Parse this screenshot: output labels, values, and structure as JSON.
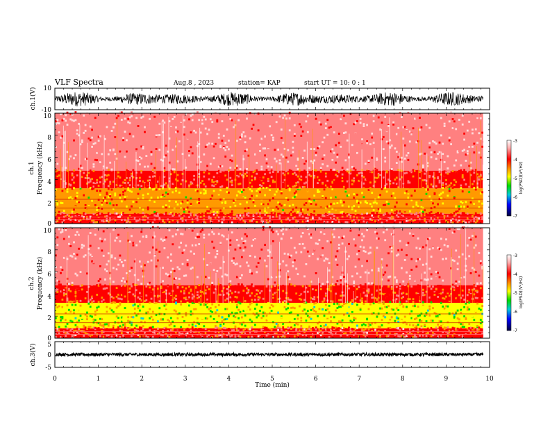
{
  "header": {
    "title": "VLF Spectra",
    "date": "Aug.8 , 2023",
    "station": "station= KAP",
    "start": "start UT = 10: 0 : 1"
  },
  "chart_data": [
    {
      "type": "line",
      "panel": "ch1-waveform",
      "ylabel": "ch.1(V)",
      "ylim": [
        -10,
        10
      ],
      "y_ticks": [
        "10",
        "-10"
      ],
      "xlim": [
        0,
        10
      ],
      "data_end_min": 9.85,
      "description_values": {
        "center": 0,
        "envelope_low": -7,
        "envelope_high": 7
      }
    },
    {
      "type": "heatmap",
      "panel": "ch1-spectrogram",
      "ylabel_top": "ch.1",
      "ylabel": "Frequency (kHz)",
      "ylim": [
        0,
        10
      ],
      "y_ticks": [
        "10",
        "8",
        "6",
        "4",
        "2",
        "0"
      ],
      "xlim": [
        0,
        10
      ],
      "data_end_min": 9.85,
      "bands": [
        {
          "from_khz": 0.0,
          "to_khz": 0.9,
          "log_psd": -3.8
        },
        {
          "from_khz": 0.9,
          "to_khz": 3.2,
          "log_psd": -4.6
        },
        {
          "from_khz": 3.2,
          "to_khz": 4.8,
          "log_psd": -3.9
        },
        {
          "from_khz": 4.8,
          "to_khz": 10.0,
          "log_psd": -3.2
        }
      ],
      "colorbar": {
        "label": "log(PSD)(V²/Hz)",
        "ticks": [
          "-3",
          "-4",
          "-5",
          "-6",
          "-7"
        ],
        "range": [
          -7,
          -3
        ]
      }
    },
    {
      "type": "heatmap",
      "panel": "ch2-spectrogram",
      "ylabel_top": "ch.2",
      "ylabel": "Frequency (kHz)",
      "ylim": [
        0,
        10
      ],
      "y_ticks": [
        "10",
        "8",
        "6",
        "4",
        "2",
        "0"
      ],
      "xlim": [
        0,
        10
      ],
      "data_end_min": 9.85,
      "bands": [
        {
          "from_khz": 0.0,
          "to_khz": 0.9,
          "log_psd": -3.8
        },
        {
          "from_khz": 0.9,
          "to_khz": 3.2,
          "log_psd": -5.0
        },
        {
          "from_khz": 3.2,
          "to_khz": 4.8,
          "log_psd": -3.9
        },
        {
          "from_khz": 4.8,
          "to_khz": 10.0,
          "log_psd": -3.2
        }
      ],
      "colorbar": {
        "label": "log(PSD)(V²/Hz)",
        "ticks": [
          "-3",
          "-4",
          "-5",
          "-6",
          "-7"
        ],
        "range": [
          -7,
          -3
        ]
      }
    },
    {
      "type": "line",
      "panel": "ch3-waveform",
      "ylabel": "ch.3(V)",
      "ylim": [
        -5,
        5
      ],
      "y_ticks": [
        "5",
        "0",
        "-5"
      ],
      "xlim": [
        0,
        10
      ],
      "data_end_min": 9.85,
      "description_values": {
        "level": 0,
        "envelope_low": -0.6,
        "envelope_high": 0.6
      }
    }
  ],
  "x_axis": {
    "label": "Time (min)",
    "ticks": [
      "0",
      "1",
      "2",
      "3",
      "4",
      "5",
      "6",
      "7",
      "8",
      "9",
      "10"
    ]
  },
  "colors": {
    "wave": "#000000",
    "red": "#ff0000",
    "yellow": "#ffff00",
    "green": "#00dd00",
    "blue": "#0000ff",
    "navy": "#000040"
  }
}
